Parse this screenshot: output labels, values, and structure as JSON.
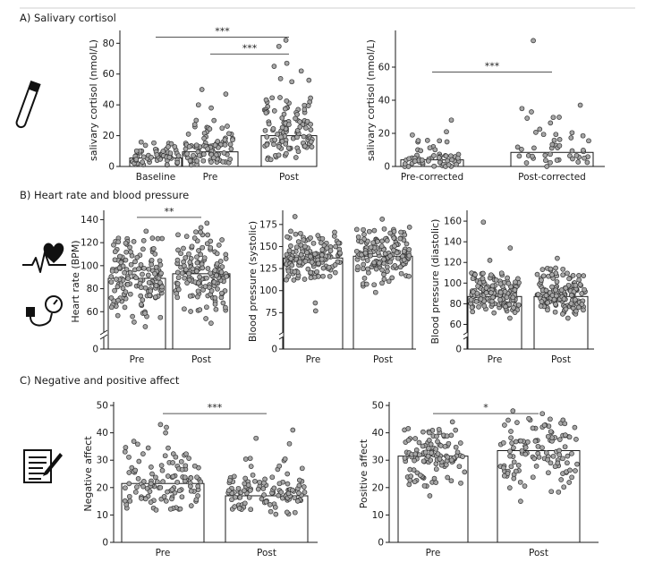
{
  "sections": {
    "a_title": "A) Salivary cortisol",
    "b_title": "B) Heart rate and blood pressure",
    "c_title": "C) Negative and positive affect"
  },
  "icons": {
    "a": "test-tube-icon",
    "b_top": "heart-rate-icon",
    "b_bottom": "blood-pressure-cuff-icon",
    "c": "questionnaire-pencil-icon"
  },
  "colors": {
    "dot_fill": "#a6a6a6",
    "dot_stroke": "#333333",
    "bar_fill": "#ffffff",
    "axis": "#1a1a1a"
  },
  "chart_data": [
    {
      "id": "cortisol-raw",
      "type": "bar",
      "ylabel": "salivary cortisol (nmol/L)",
      "categories": [
        "Baseline",
        "Pre",
        "Post"
      ],
      "values": [
        5.5,
        9.5,
        20
      ],
      "ylim": [
        0,
        86
      ],
      "yticks": [
        0,
        20,
        40,
        60,
        80
      ],
      "npoints": [
        60,
        90,
        110
      ],
      "spread": [
        [
          1,
          16
        ],
        [
          1,
          30
        ],
        [
          2,
          45
        ]
      ],
      "outliers": [
        [],
        [
          50,
          47,
          40,
          38
        ],
        [
          82,
          78,
          67,
          65,
          62,
          57,
          56,
          55
        ]
      ],
      "significance": [
        {
          "from": 0,
          "to": 2,
          "label": "***",
          "y": 84
        },
        {
          "from": 1,
          "to": 2,
          "label": "***",
          "y": 73
        }
      ]
    },
    {
      "id": "cortisol-corrected",
      "type": "bar",
      "ylabel": "salivary cortisol (nmol/L)",
      "categories": [
        "Pre-corrected",
        "Post-corrected"
      ],
      "values": [
        4,
        8.5
      ],
      "ylim": [
        0,
        80
      ],
      "yticks": [
        0,
        20,
        40,
        60
      ],
      "npoints": [
        55,
        45
      ],
      "spread": [
        [
          0,
          16
        ],
        [
          0,
          30
        ]
      ],
      "outliers": [
        [
          28,
          21,
          19
        ],
        [
          76,
          37,
          35,
          33
        ]
      ],
      "significance": [
        {
          "from": 0,
          "to": 1,
          "label": "***",
          "y": 57
        }
      ]
    },
    {
      "id": "heart-rate",
      "type": "bar",
      "ylabel": "Heart rate (BPM)",
      "categories": [
        "Pre",
        "Post"
      ],
      "values": [
        89,
        93
      ],
      "ylim": [
        40,
        145
      ],
      "yticks": [
        0,
        60,
        80,
        100,
        120,
        140
      ],
      "axis_break": true,
      "npoints": [
        150,
        150
      ],
      "spread": [
        [
          55,
          125
        ],
        [
          58,
          130
        ]
      ],
      "outliers": [
        [
          47,
          51,
          130
        ],
        [
          50,
          54,
          137,
          133
        ]
      ],
      "significance": [
        {
          "from": 0,
          "to": 1,
          "label": "**",
          "y": 142
        }
      ]
    },
    {
      "id": "bp-systolic",
      "type": "bar",
      "ylabel": "Blood pressure (systolic)",
      "categories": [
        "Pre",
        "Post"
      ],
      "values": [
        137,
        139
      ],
      "ylim": [
        50,
        187
      ],
      "yticks": [
        0,
        75,
        100,
        125,
        150,
        175
      ],
      "axis_break": true,
      "npoints": [
        150,
        150
      ],
      "spread": [
        [
          112,
          168
        ],
        [
          105,
          172
        ]
      ],
      "outliers": [
        [
          77,
          86,
          184
        ],
        [
          98,
          181
        ]
      ],
      "significance": []
    },
    {
      "id": "bp-diastolic",
      "type": "bar",
      "ylabel": "Blood pressure (diastolic)",
      "categories": [
        "Pre",
        "Post"
      ],
      "values": [
        87,
        87
      ],
      "ylim": [
        50,
        167
      ],
      "yticks": [
        0,
        60,
        80,
        100,
        120,
        140,
        160
      ],
      "axis_break": true,
      "npoints": [
        150,
        150
      ],
      "spread": [
        [
          70,
          110
        ],
        [
          70,
          115
        ]
      ],
      "outliers": [
        [
          159,
          134,
          122,
          66
        ],
        [
          124,
          66
        ]
      ],
      "significance": []
    },
    {
      "id": "negative-affect",
      "type": "bar",
      "ylabel": "Negative affect",
      "categories": [
        "Pre",
        "Post"
      ],
      "values": [
        21.5,
        17
      ],
      "ylim": [
        0,
        50
      ],
      "yticks": [
        0,
        10,
        20,
        30,
        40,
        50
      ],
      "npoints": [
        110,
        110
      ],
      "spread": [
        [
          11,
          37
        ],
        [
          10,
          31
        ]
      ],
      "outliers": [
        [
          43,
          42,
          40
        ],
        [
          41,
          38,
          36
        ]
      ],
      "significance": [
        {
          "from": 0,
          "to": 1,
          "label": "***",
          "y": 47
        }
      ]
    },
    {
      "id": "positive-affect",
      "type": "bar",
      "ylabel": "Positive affect",
      "categories": [
        "Pre",
        "Post"
      ],
      "values": [
        31.5,
        33.5
      ],
      "ylim": [
        0,
        50
      ],
      "yticks": [
        0,
        10,
        20,
        30,
        40,
        50
      ],
      "npoints": [
        110,
        110
      ],
      "spread": [
        [
          20,
          42
        ],
        [
          18,
          46
        ]
      ],
      "outliers": [
        [
          17,
          44
        ],
        [
          15,
          48,
          47
        ]
      ],
      "significance": [
        {
          "from": 0,
          "to": 1,
          "label": "*",
          "y": 47
        }
      ]
    }
  ]
}
